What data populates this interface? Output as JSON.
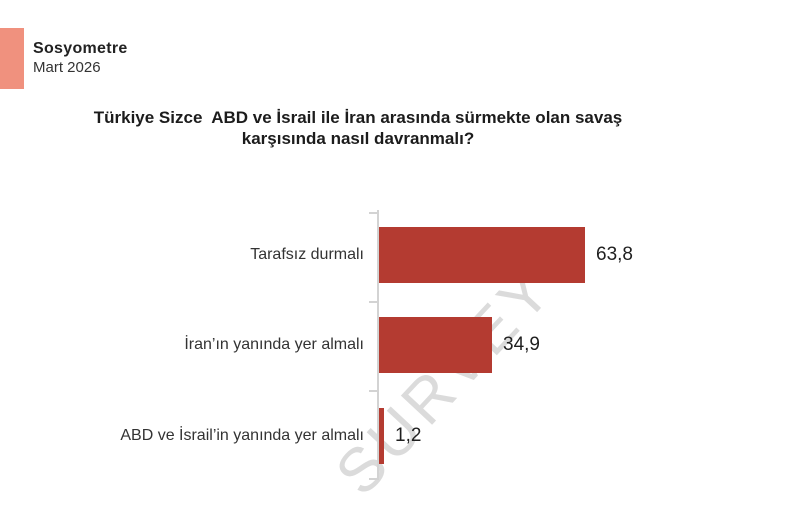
{
  "brand": {
    "name": "Sosyometre",
    "date": "Mart 2026",
    "logo_color": "#F0917E"
  },
  "title": "Türkiye Sizce  ABD ve İsrail ile İran arasında sürmekte olan savaş\nkarşısında nasıl davranmalı?",
  "watermark": "SURVEY",
  "chart_data": {
    "type": "bar",
    "orientation": "horizontal",
    "title": "Türkiye Sizce  ABD ve İsrail ile İran arasında sürmekte olan savaş karşısında nasıl davranmalı?",
    "categories": [
      "Tarafsız durmalı",
      "İran’ın yanında yer almalı",
      "ABD ve İsrail’in yanında yer almalı"
    ],
    "values": [
      63.8,
      34.9,
      1.2
    ],
    "value_labels": [
      "63,8",
      "34,9",
      "1,2"
    ],
    "bar_color": "#B43B31",
    "axis_color": "#D3D3D3",
    "watermark_color": "#DBDBDB",
    "xlim": [
      0,
      70
    ],
    "grid": false,
    "legend": false
  }
}
